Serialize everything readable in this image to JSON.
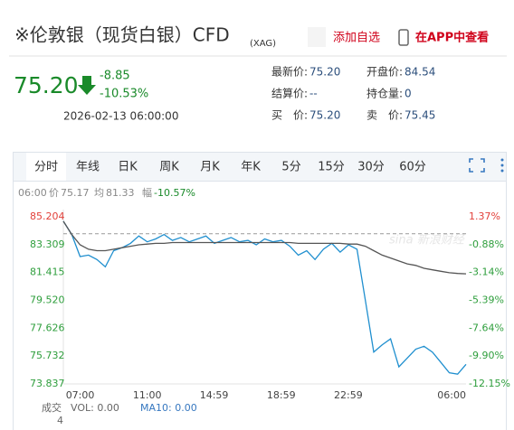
{
  "header": {
    "title": "※伦敦银（现货白银）CFD",
    "subtitle": "(XAG)",
    "add": "添加自选",
    "app": "在APP中查看"
  },
  "quote": {
    "price": "75.20",
    "change": "-8.85",
    "change_pct": "-10.53%",
    "time": "2026-02-13 06:00:00",
    "fields": [
      {
        "label": "最新价:",
        "value": "75.20"
      },
      {
        "label": "开盘价:",
        "value": "84.54"
      },
      {
        "label": "结算价:",
        "value": "--"
      },
      {
        "label": "持仓量:",
        "value": "0"
      },
      {
        "label": "买　价:",
        "value": "75.20"
      },
      {
        "label": "卖　价:",
        "value": "75.45"
      }
    ]
  },
  "tabs": [
    "分时",
    "年线",
    "日K",
    "周K",
    "月K",
    "年K",
    "5分",
    "15分",
    "30分",
    "60分"
  ],
  "status": {
    "time": "06:00",
    "price_label": "价",
    "price": "75.17",
    "avg_label": "均",
    "avg": "81.33",
    "range_label": "幅",
    "range": "-10.57%"
  },
  "watermark": "sina 新浪财经",
  "chart_data": {
    "type": "line",
    "x": [
      0,
      30,
      60,
      90,
      120,
      150,
      180,
      210,
      240,
      270,
      300,
      330,
      360,
      390,
      420,
      450,
      480,
      510,
      540,
      570,
      600,
      630,
      660,
      690,
      720,
      750,
      780,
      810,
      840,
      870,
      900,
      930,
      960,
      990,
      1020,
      1050,
      1080,
      1110,
      1140,
      1170,
      1200,
      1230,
      1260,
      1290,
      1320,
      1350,
      1380,
      1410,
      1440
    ],
    "xlim": [
      0,
      1440
    ],
    "xticks": [
      {
        "value": 60,
        "label": "07:00"
      },
      {
        "value": 300,
        "label": "11:00"
      },
      {
        "value": 539,
        "label": "14:59"
      },
      {
        "value": 779,
        "label": "18:59"
      },
      {
        "value": 1019,
        "label": "22:59"
      },
      {
        "value": 1440,
        "label": "06:00"
      }
    ],
    "ylim": [
      73.837,
      85.204
    ],
    "yticks": [
      85.204,
      83.309,
      81.415,
      {
        "value": 79.52,
        "label": "79.520"
      },
      77.626,
      75.732,
      73.837
    ],
    "y2lim": [
      -12.15,
      1.37
    ],
    "y2ticks": [
      {
        "value": 1.37,
        "label": "1.37%"
      },
      {
        "value": -0.88,
        "label": "-0.88%"
      },
      {
        "value": -3.14,
        "label": "-3.14%"
      },
      {
        "value": -5.39,
        "label": "-5.39%"
      },
      {
        "value": -7.64,
        "label": "-7.64%"
      },
      {
        "value": -9.9,
        "label": "-9.90%"
      },
      {
        "value": -12.15,
        "label": "-12.15%"
      }
    ],
    "baseline": 0,
    "series": [
      {
        "color": "#1f8fcf",
        "values": [
          84.9,
          84.0,
          82.5,
          82.6,
          82.3,
          81.8,
          82.9,
          83.1,
          83.4,
          83.9,
          83.5,
          83.7,
          84.0,
          83.6,
          83.8,
          83.5,
          83.7,
          83.9,
          83.4,
          83.6,
          83.8,
          83.5,
          83.6,
          83.3,
          83.7,
          83.5,
          83.6,
          83.2,
          82.6,
          82.9,
          82.3,
          83.0,
          83.4,
          82.8,
          83.3,
          83.0,
          79.5,
          76.0,
          76.5,
          76.9,
          75.0,
          75.6,
          76.2,
          76.4,
          76.0,
          75.3,
          74.6,
          74.5,
          75.17
        ]
      },
      {
        "color": "#555555",
        "values": [
          84.9,
          84.0,
          83.3,
          83.0,
          82.9,
          82.9,
          83.0,
          83.1,
          83.2,
          83.3,
          83.35,
          83.4,
          83.4,
          83.45,
          83.45,
          83.45,
          83.45,
          83.45,
          83.45,
          83.45,
          83.45,
          83.45,
          83.45,
          83.45,
          83.45,
          83.45,
          83.45,
          83.45,
          83.4,
          83.4,
          83.4,
          83.4,
          83.4,
          83.4,
          83.35,
          83.35,
          83.2,
          82.9,
          82.6,
          82.4,
          82.2,
          82.0,
          81.9,
          81.7,
          81.6,
          81.5,
          81.4,
          81.35,
          81.33
        ]
      }
    ]
  },
  "footer": {
    "vol_label": "成交",
    "vol": "VOL: 0.00",
    "ma": "MA10: 0.00",
    "num": "4"
  }
}
